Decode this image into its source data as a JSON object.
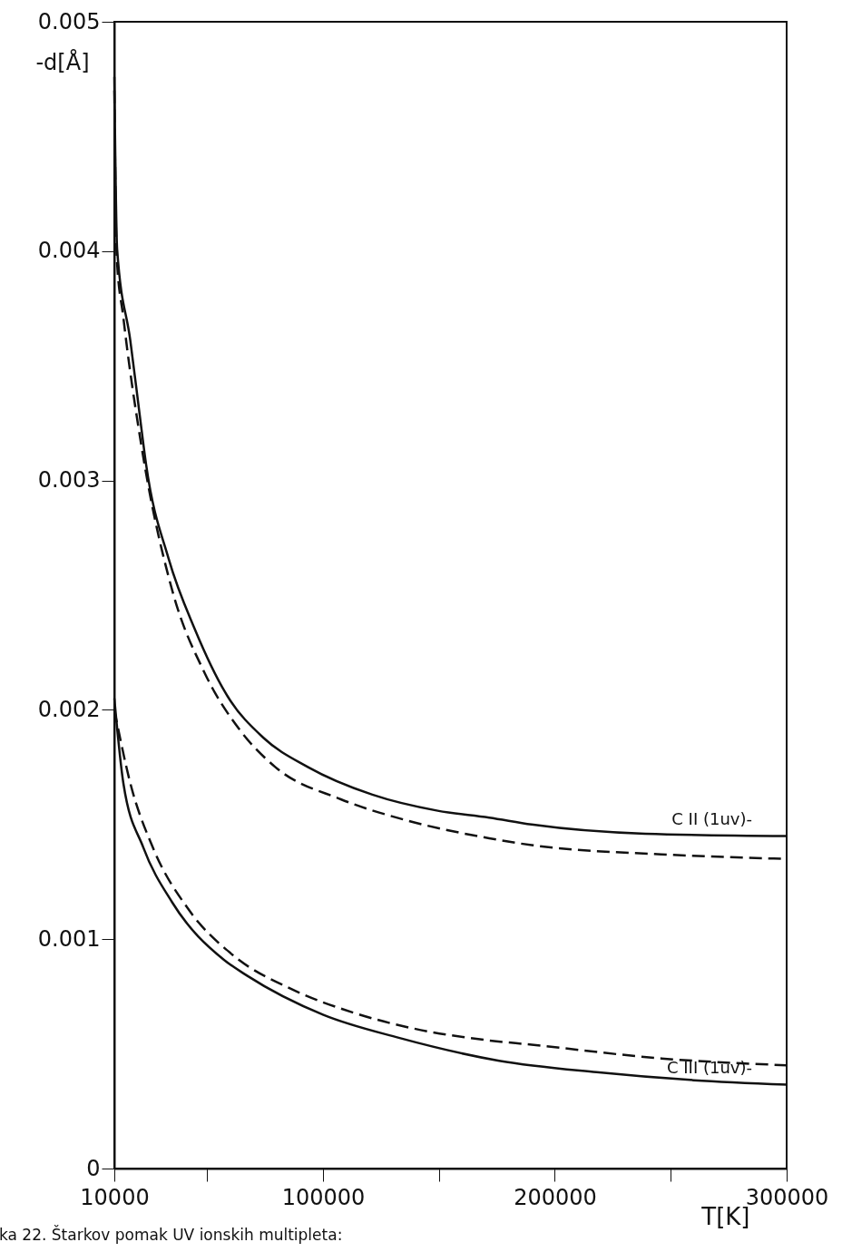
{
  "chart_data": {
    "type": "line",
    "xlabel": "T[K]",
    "ylabel": "-d[Å]",
    "annotations": [
      "ka 22. Štarkov pomak UV ionskih multipleta:"
    ],
    "xlim": [
      10000,
      300000
    ],
    "xticks": [
      10000,
      {
        "value": 50000,
        "label": null
      },
      100000,
      {
        "value": 150000,
        "label": null
      },
      200000,
      {
        "value": 250000,
        "label": null
      },
      300000
    ],
    "ylim": [
      0,
      0.005
    ],
    "yticks": [
      0,
      0.001,
      0.002,
      0.003,
      0.004,
      0.005
    ],
    "grid": false,
    "series": [
      {
        "name": "C II (1uv)-",
        "color": "#111111",
        "line_style": "solid",
        "x": [
          10000,
          11200,
          16900,
          20900,
          23700,
          33400,
          44800,
          58800,
          74100,
          93600,
          121300,
          149500,
          171700,
          190000,
          239000,
          300000
        ],
        "values": [
          0.00476,
          0.00401,
          0.00361,
          0.00329,
          0.00307,
          0.00266,
          0.00235,
          0.00206,
          0.00188,
          0.00175,
          0.00163,
          0.00156,
          0.00153,
          0.0015,
          0.00146,
          0.00145
        ]
      },
      {
        "color": "#111111",
        "line_style": "dashed",
        "x": [
          10000,
          11000,
          13900,
          21700,
          35000,
          49000,
          64300,
          79500,
          107700,
          135400,
          171700,
          190000,
          246000,
          300000
        ],
        "values": [
          0.0047,
          0.00398,
          0.00371,
          0.00315,
          0.00252,
          0.00216,
          0.00191,
          0.00175,
          0.00161,
          0.00152,
          0.00144,
          0.00141,
          0.00137,
          0.00135
        ]
      },
      {
        "name": "C III (1uv)-",
        "color": "#111111",
        "line_style": "solid",
        "x": [
          10000,
          13900,
          22500,
          35000,
          57300,
          67400,
          100200,
          132700,
          176000,
          218000,
          260000,
          300000
        ],
        "values": [
          0.00205,
          0.00168,
          0.0014,
          0.00116,
          0.00091,
          0.00084,
          0.00067,
          0.00057,
          0.00047,
          0.00042,
          0.000385,
          0.000366
        ]
      },
      {
        "color": "#111111",
        "line_style": "dashed",
        "x": [
          10000,
          16900,
          26600,
          42000,
          61200,
          87000,
          113000,
          139300,
          170500,
          190000,
          246000,
          300000
        ],
        "values": [
          0.002,
          0.00168,
          0.0014,
          0.00113,
          0.00093,
          0.00078,
          0.00068,
          0.00061,
          0.00056,
          0.00054,
          0.00048,
          0.00045
        ]
      }
    ]
  }
}
